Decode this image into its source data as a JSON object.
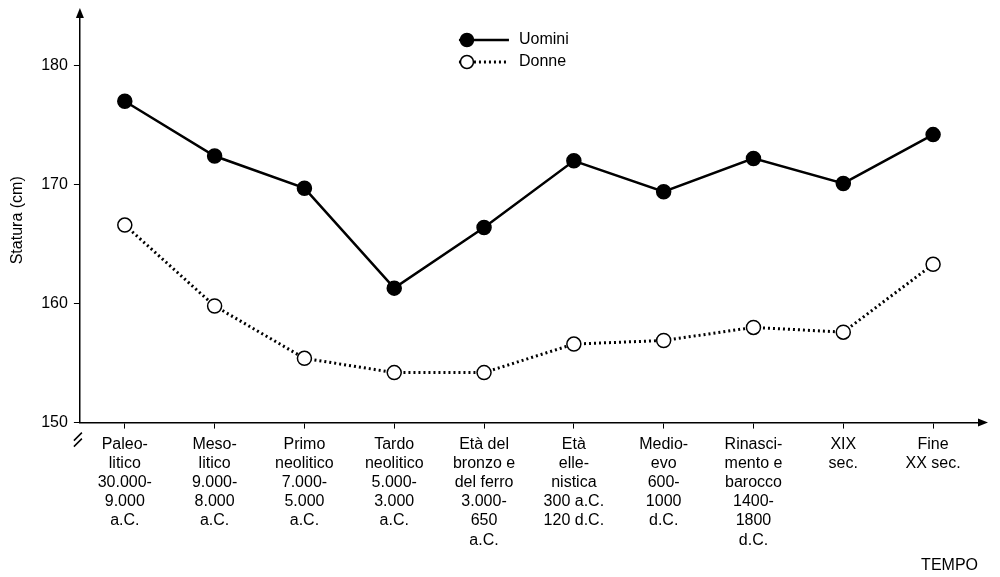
{
  "chart_data": {
    "type": "line",
    "xlabel": "TEMPO",
    "ylabel": "Statura (cm)",
    "categories": [
      [
        "Paleo-",
        "litico",
        "30.000-",
        "9.000",
        "a.C."
      ],
      [
        "Meso-",
        "litico",
        "9.000-",
        "8.000",
        "a.C."
      ],
      [
        "Primo",
        "neolitico",
        "7.000-",
        "5.000",
        "a.C."
      ],
      [
        "Tardo",
        "neolitico",
        "5.000-",
        "3.000",
        "a.C."
      ],
      [
        "Età del",
        "bronzo e",
        "del ferro",
        "3.000-",
        "650",
        "a.C."
      ],
      [
        "Età",
        "elle-",
        "nistica",
        "300 a.C.",
        "120 d.C."
      ],
      [
        "Medio-",
        "evo",
        "600-",
        "1000",
        "d.C."
      ],
      [
        "Rinasci-",
        "mento e",
        "barocco",
        "1400-",
        "1800",
        "d.C."
      ],
      [
        "XIX",
        "sec."
      ],
      [
        "Fine",
        "XX sec."
      ]
    ],
    "series": [
      {
        "name": "Uomini",
        "color": "#000000",
        "marker": "circle",
        "line_style": "solid",
        "values": [
          177.0,
          172.4,
          169.7,
          161.3,
          166.4,
          172.0,
          169.4,
          172.2,
          170.1,
          174.2
        ]
      },
      {
        "name": "Donne",
        "color": "#000000",
        "marker": "open_circle",
        "line_style": "dotted",
        "values": [
          166.6,
          159.8,
          155.4,
          154.2,
          154.2,
          156.6,
          156.9,
          158.0,
          157.6,
          163.3
        ]
      }
    ],
    "ylim": [
      150,
      184
    ],
    "yticks": [
      150,
      160,
      170,
      180
    ],
    "grid": false,
    "legend": "top"
  }
}
